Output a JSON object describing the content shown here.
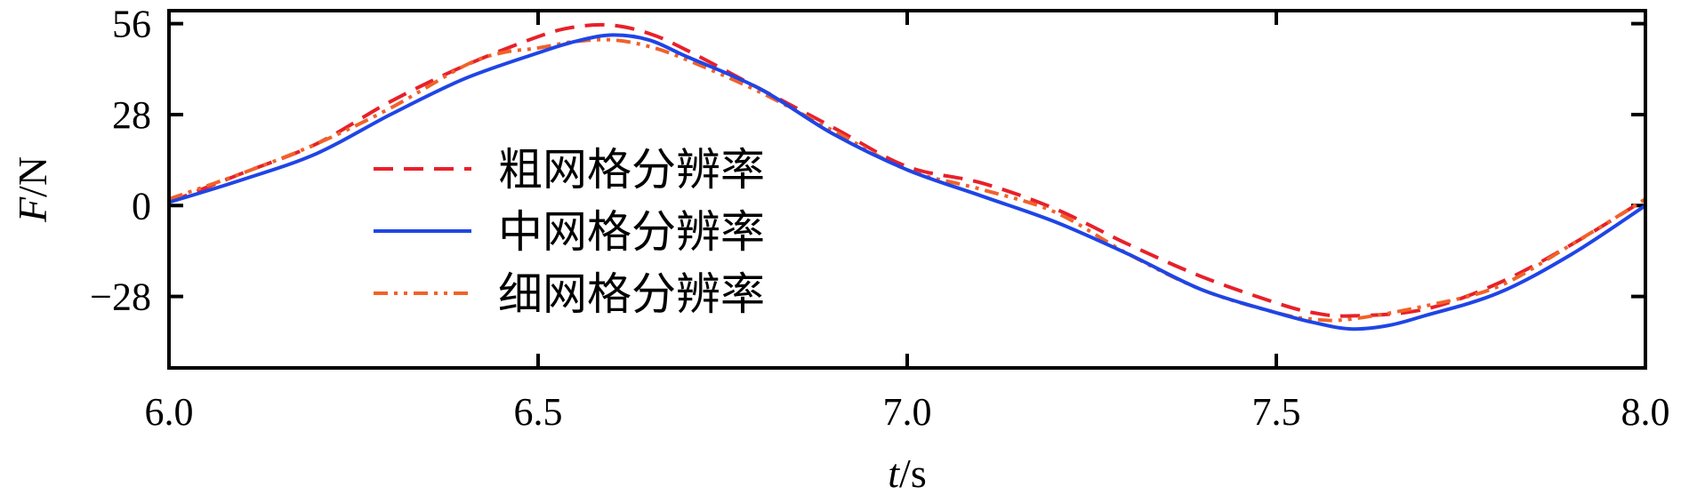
{
  "chart_data": {
    "type": "line",
    "xlabel": {
      "italic": "t",
      "unit": "/s"
    },
    "ylabel": {
      "italic": "F",
      "unit": "/N"
    },
    "xlim": [
      6.0,
      8.0
    ],
    "ylim": [
      -50,
      60
    ],
    "x_ticks": [
      "6.0",
      "6.5",
      "7.0",
      "7.5",
      "8.0"
    ],
    "y_ticks": [
      "56",
      "28",
      "0",
      "−28"
    ],
    "x_tick_values": [
      6.0,
      6.5,
      7.0,
      7.5,
      8.0
    ],
    "y_tick_values": [
      56,
      28,
      0,
      -28
    ],
    "legend_position": "center-left",
    "series": [
      {
        "name": "粗网格分辨率",
        "color": "#e8202a",
        "dash": "dashed",
        "x": [
          6.0,
          6.1,
          6.2,
          6.3,
          6.4,
          6.5,
          6.55,
          6.6,
          6.65,
          6.7,
          6.8,
          6.9,
          7.0,
          7.1,
          7.2,
          7.3,
          7.4,
          7.5,
          7.55,
          7.6,
          7.7,
          7.8,
          7.9,
          8.0
        ],
        "y": [
          1,
          10,
          19,
          32,
          43,
          52,
          55,
          55.5,
          53,
          48,
          36,
          24,
          12,
          7,
          -1,
          -12,
          -22,
          -30,
          -33,
          -34,
          -32,
          -24,
          -12,
          2
        ]
      },
      {
        "name": "中网格分辨率",
        "color": "#1f45e6",
        "dash": "solid",
        "x": [
          6.0,
          6.1,
          6.2,
          6.3,
          6.4,
          6.5,
          6.55,
          6.6,
          6.65,
          6.7,
          6.8,
          6.9,
          7.0,
          7.1,
          7.2,
          7.3,
          7.4,
          7.5,
          7.55,
          7.6,
          7.65,
          7.7,
          7.8,
          7.9,
          8.0
        ],
        "y": [
          1,
          8,
          16,
          28,
          39,
          47,
          50.5,
          52.5,
          51,
          46,
          36,
          22,
          11,
          3,
          -5,
          -15,
          -26,
          -33,
          -36,
          -38,
          -37,
          -34,
          -27,
          -15,
          0
        ]
      },
      {
        "name": "细网格分辨率",
        "color": "#f0622a",
        "dash": "dashdotdot",
        "x": [
          6.0,
          6.1,
          6.2,
          6.3,
          6.4,
          6.45,
          6.5,
          6.55,
          6.6,
          6.65,
          6.7,
          6.8,
          6.9,
          7.0,
          7.1,
          7.2,
          7.3,
          7.4,
          7.5,
          7.55,
          7.6,
          7.7,
          7.8,
          7.9,
          8.0
        ],
        "y": [
          2,
          10,
          19,
          30,
          43,
          47,
          48.5,
          50.5,
          51,
          49,
          45,
          35,
          23,
          11,
          5,
          -2,
          -15,
          -26,
          -33,
          -35,
          -35,
          -31,
          -25,
          -12,
          2
        ]
      }
    ]
  }
}
